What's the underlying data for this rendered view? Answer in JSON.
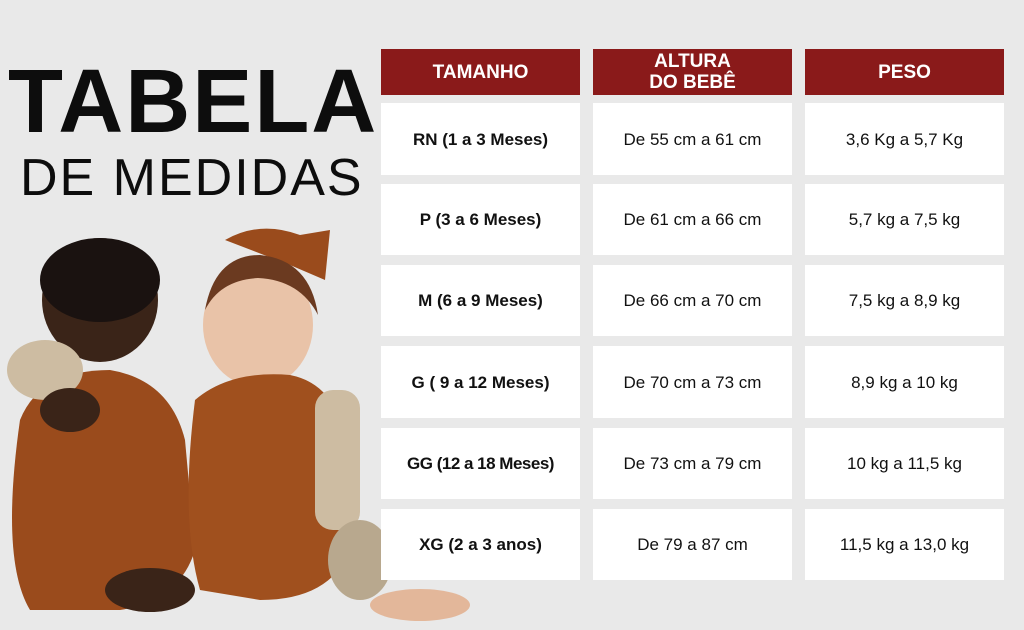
{
  "title": {
    "line1": "TABELA",
    "line2": "DE MEDIDAS"
  },
  "colors": {
    "header": "#8a1a1a",
    "background": "#e9e9e9",
    "cell": "#ffffff"
  },
  "table": {
    "headers": [
      "TAMANHO",
      "ALTURA DO BEBÊ",
      "PESO"
    ],
    "rows": [
      [
        "RN (1 a 3 Meses)",
        "De 55 cm a 61 cm",
        "3,6 Kg a 5,7 Kg"
      ],
      [
        "P (3 a 6 Meses)",
        "De 61 cm a 66 cm",
        "5,7 kg a 7,5 kg"
      ],
      [
        "M (6 a 9 Meses)",
        "De 66 cm a 70 cm",
        "7,5 kg a 8,9 kg"
      ],
      [
        "G ( 9 a 12 Meses)",
        "De 70 cm a 73 cm",
        "8,9 kg a 10 kg"
      ],
      [
        "GG (12 a 18 Meses)",
        "De 73 cm a 79 cm",
        "10 kg a 11,5 kg"
      ],
      [
        "XG (2 a 3 anos)",
        "De 79 a 87 cm",
        "11,5 kg a 13,0 kg"
      ]
    ]
  }
}
